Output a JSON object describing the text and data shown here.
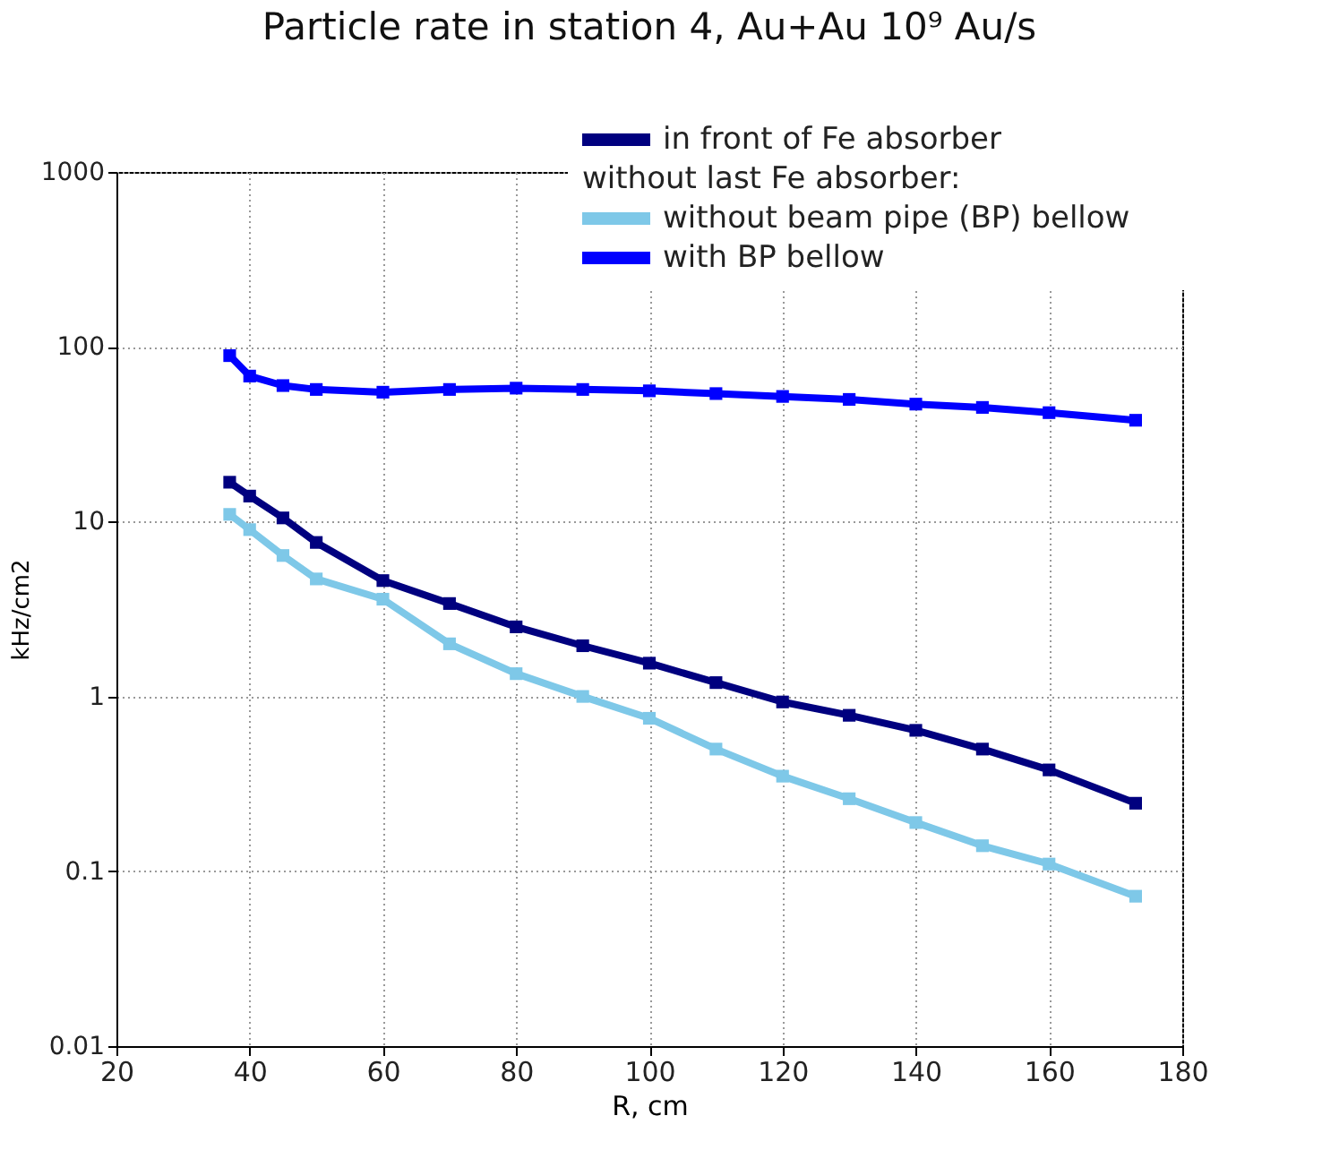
{
  "chart_data": {
    "type": "line",
    "title": "Particle rate in station 4, Au+Au 10⁹ Au/s",
    "xlabel": "R, cm",
    "ylabel": "kHz/cm2",
    "log": "y",
    "xlim": [
      20,
      180
    ],
    "xticks": [
      20,
      40,
      60,
      80,
      100,
      120,
      140,
      160,
      180
    ],
    "ylim": [
      0.01,
      1000
    ],
    "yticks": [
      0.01,
      0.1,
      1,
      10,
      100,
      1000
    ],
    "grid": true,
    "legend": "top right",
    "marker": "square",
    "line_style": "solid",
    "annotations": [
      "without last Fe absorber:"
    ],
    "x": [
      37,
      40,
      45,
      50,
      60,
      70,
      80,
      90,
      100,
      110,
      120,
      130,
      140,
      150,
      160,
      173
    ],
    "series": [
      {
        "name": "in front of Fe absorber",
        "color": "#00007f",
        "values": [
          16.8,
          14,
          10.5,
          7.6,
          4.6,
          3.4,
          2.5,
          1.95,
          1.55,
          1.2,
          0.93,
          0.78,
          0.64,
          0.5,
          0.38,
          0.245
        ]
      },
      {
        "name": "without beam pipe (BP) bellow",
        "color": "#7ec8e8",
        "values": [
          11,
          9,
          6.4,
          4.7,
          3.6,
          2.0,
          1.35,
          1.0,
          0.75,
          0.5,
          0.35,
          0.26,
          0.19,
          0.14,
          0.11,
          0.072
        ]
      },
      {
        "name": "with BP bellow",
        "color": "#0000ff",
        "values": [
          89,
          68,
          60,
          57,
          55,
          57,
          58,
          57,
          56,
          54,
          52,
          50,
          47,
          45,
          42,
          38
        ]
      }
    ]
  }
}
